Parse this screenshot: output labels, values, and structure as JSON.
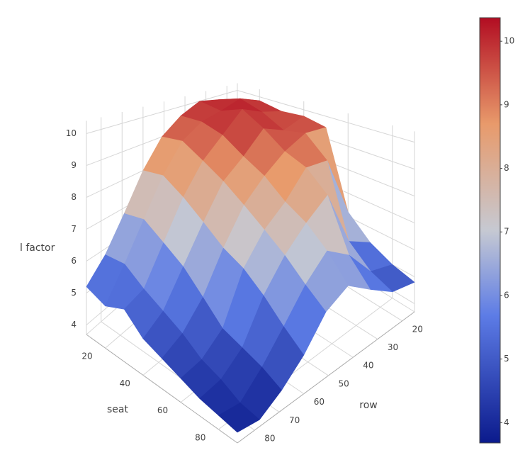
{
  "chart_data": {
    "type": "surface",
    "x_title": "seat",
    "y_title": "row",
    "z_title": "l factor",
    "x": [
      10,
      20,
      30,
      40,
      50,
      60,
      70,
      80,
      90
    ],
    "y": [
      15,
      24,
      33,
      42,
      51,
      60,
      69,
      78,
      87
    ],
    "z": [
      [
        9.5,
        9.8,
        10.0,
        9.6,
        9.0,
        8.0,
        6.8,
        5.8,
        5.2
      ],
      [
        9.8,
        10.2,
        9.9,
        9.7,
        9.2,
        8.2,
        7.0,
        5.9,
        5.0
      ],
      [
        9.6,
        9.9,
        10.3,
        9.5,
        8.8,
        7.8,
        6.6,
        5.5,
        5.3
      ],
      [
        9.7,
        9.4,
        9.8,
        9.0,
        8.4,
        7.3,
        6.2,
        5.2,
        4.8
      ],
      [
        9.5,
        9.6,
        9.2,
        8.6,
        7.9,
        6.8,
        5.6,
        4.9,
        4.6
      ],
      [
        6.2,
        8.8,
        8.9,
        8.0,
        7.4,
        6.5,
        5.0,
        4.5,
        4.4
      ],
      [
        5.4,
        6.0,
        8.2,
        7.6,
        6.9,
        6.0,
        4.8,
        4.3,
        4.2
      ],
      [
        5.0,
        5.3,
        6.4,
        7.0,
        6.3,
        5.4,
        4.6,
        4.0,
        4.1
      ],
      [
        4.8,
        5.0,
        5.6,
        6.2,
        5.8,
        4.9,
        4.3,
        3.9,
        4.0
      ]
    ],
    "xlim": [
      10,
      90
    ],
    "ylim": [
      15,
      87
    ],
    "zlim": [
      3.7,
      10.4
    ],
    "xticks": [
      20,
      40,
      60,
      80
    ],
    "yticks": [
      20,
      30,
      40,
      50,
      60,
      70,
      80
    ],
    "zticks": [
      4,
      5,
      6,
      7,
      8,
      9,
      10
    ],
    "colorbar_lim": [
      3.68,
      10.37
    ],
    "colorbar_ticks": [
      4,
      5,
      6,
      7,
      8,
      9,
      10
    ],
    "colorscale": [
      [
        0,
        "#0b1a8c"
      ],
      [
        0.3,
        "#5d7ce6"
      ],
      [
        0.5,
        "#c6c9d2"
      ],
      [
        0.75,
        "#e89a6b"
      ],
      [
        1,
        "#b20d22"
      ]
    ],
    "grid": true
  }
}
